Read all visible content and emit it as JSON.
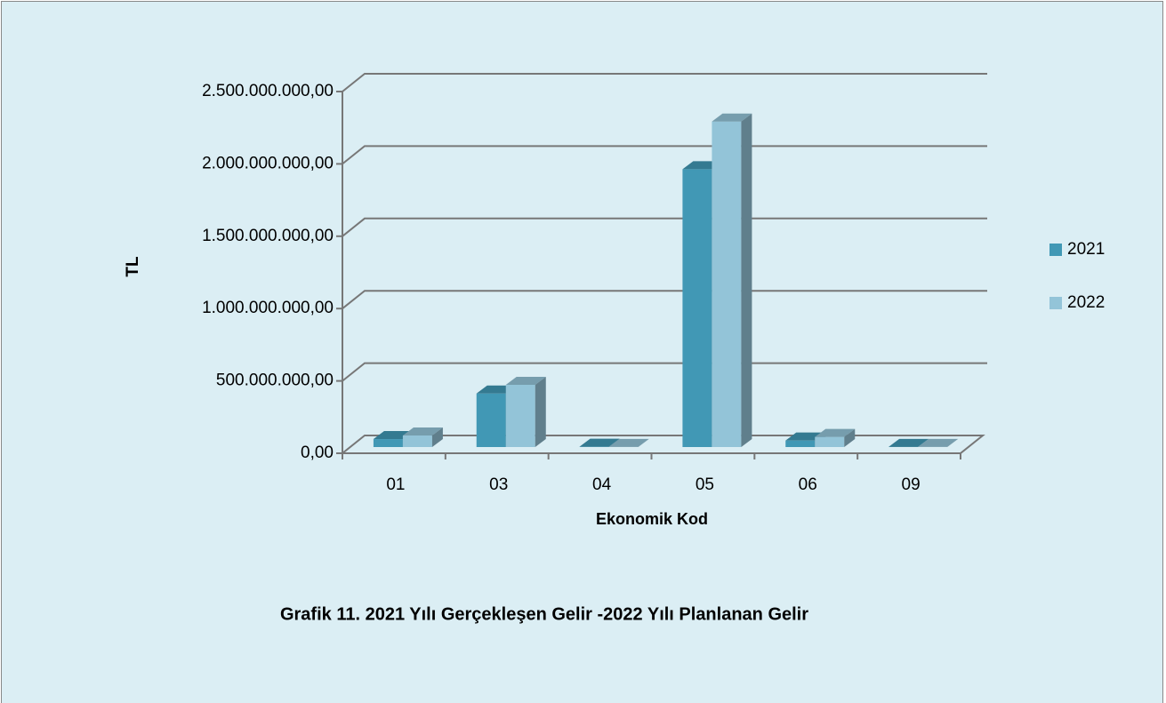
{
  "chart_data": {
    "type": "bar3d",
    "caption": "Grafik 11. 2021 Yılı Gerçekleşen Gelir -2022 Yılı Planlanan Gelir",
    "x_label": "Ekonomik Kod",
    "y_label": "TL",
    "categories": [
      "01",
      "03",
      "04",
      "05",
      "06",
      "09"
    ],
    "series": [
      {
        "name": "2021",
        "color": "#4198b5",
        "values": [
          55000000,
          370000000,
          2000000,
          1920000000,
          45000000,
          1000000
        ]
      },
      {
        "name": "2022",
        "color": "#93c4d8",
        "values": [
          80000000,
          430000000,
          1000000,
          2250000000,
          70000000,
          500000
        ]
      }
    ],
    "ylim": [
      0,
      2500000000
    ],
    "yticks": [
      {
        "value": 0,
        "label": "0,00"
      },
      {
        "value": 500000000,
        "label": "500.000.000,00"
      },
      {
        "value": 1000000000,
        "label": "1.000.000.000,00"
      },
      {
        "value": 1500000000,
        "label": "1.500.000.000,00"
      },
      {
        "value": 2000000000,
        "label": "2.000.000.000,00"
      },
      {
        "value": 2500000000,
        "label": "2.500.000.000,00"
      }
    ],
    "grid": true,
    "legend": "right"
  }
}
